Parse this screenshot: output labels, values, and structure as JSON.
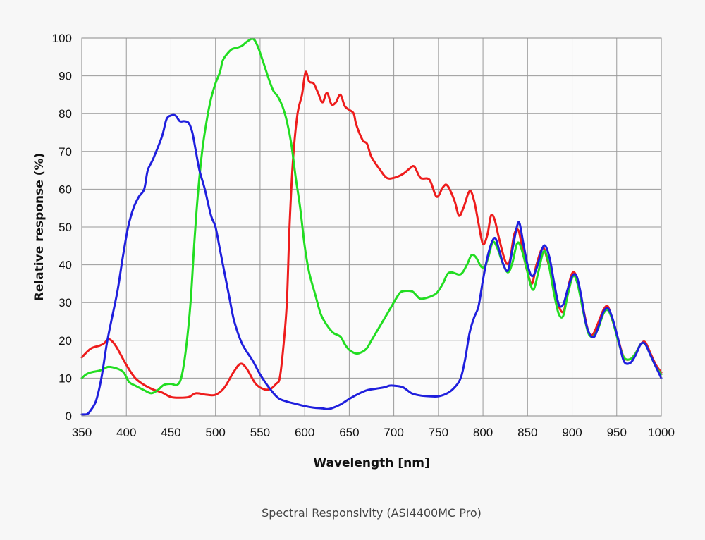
{
  "chart_data": {
    "type": "line",
    "title": "",
    "caption": "Spectral Responsivity (ASI4400MC Pro)",
    "xlabel": "Wavelength [nm]",
    "ylabel": "Relative response  (%)",
    "xlim": [
      350,
      1000
    ],
    "ylim": [
      0,
      100
    ],
    "xticks": [
      350,
      400,
      450,
      500,
      550,
      600,
      650,
      700,
      750,
      800,
      850,
      900,
      950,
      1000
    ],
    "yticks": [
      0,
      10,
      20,
      30,
      40,
      50,
      60,
      70,
      80,
      90,
      100
    ],
    "grid": true,
    "legend": "none",
    "series": [
      {
        "color": "#ee1c1c",
        "points": [
          [
            350,
            15.5
          ],
          [
            360,
            17.8
          ],
          [
            370,
            18.6
          ],
          [
            375,
            19.2
          ],
          [
            380,
            20.3
          ],
          [
            385,
            19.5
          ],
          [
            390,
            17.8
          ],
          [
            400,
            13.5
          ],
          [
            410,
            10.0
          ],
          [
            420,
            8.2
          ],
          [
            430,
            7.0
          ],
          [
            440,
            6.2
          ],
          [
            450,
            5.0
          ],
          [
            460,
            4.8
          ],
          [
            470,
            5.0
          ],
          [
            478,
            6.0
          ],
          [
            490,
            5.6
          ],
          [
            500,
            5.6
          ],
          [
            510,
            7.5
          ],
          [
            520,
            11.5
          ],
          [
            528,
            13.8
          ],
          [
            535,
            12.5
          ],
          [
            545,
            8.5
          ],
          [
            555,
            7.0
          ],
          [
            562,
            7.2
          ],
          [
            568,
            8.5
          ],
          [
            572,
            10.0
          ],
          [
            576,
            18.0
          ],
          [
            580,
            30.0
          ],
          [
            583,
            50.0
          ],
          [
            587,
            68.0
          ],
          [
            592,
            80.0
          ],
          [
            597,
            85.0
          ],
          [
            601,
            91.0
          ],
          [
            605,
            88.5
          ],
          [
            610,
            88.0
          ],
          [
            615,
            85.5
          ],
          [
            620,
            83.0
          ],
          [
            625,
            85.5
          ],
          [
            630,
            82.5
          ],
          [
            635,
            83.0
          ],
          [
            640,
            85.0
          ],
          [
            645,
            82.0
          ],
          [
            650,
            81.0
          ],
          [
            655,
            80.0
          ],
          [
            658,
            77.0
          ],
          [
            665,
            73.0
          ],
          [
            670,
            72.0
          ],
          [
            675,
            68.5
          ],
          [
            685,
            65.0
          ],
          [
            692,
            63.0
          ],
          [
            700,
            63.0
          ],
          [
            710,
            64.0
          ],
          [
            718,
            65.5
          ],
          [
            723,
            66.0
          ],
          [
            730,
            63.0
          ],
          [
            740,
            62.5
          ],
          [
            748,
            58.0
          ],
          [
            755,
            60.5
          ],
          [
            760,
            61.0
          ],
          [
            768,
            57.0
          ],
          [
            773,
            53.0
          ],
          [
            778,
            55.0
          ],
          [
            785,
            59.5
          ],
          [
            790,
            57.0
          ],
          [
            795,
            51.0
          ],
          [
            800,
            45.5
          ],
          [
            805,
            48.0
          ],
          [
            809,
            53.0
          ],
          [
            813,
            52.0
          ],
          [
            818,
            47.0
          ],
          [
            825,
            41.0
          ],
          [
            830,
            41.0
          ],
          [
            835,
            48.0
          ],
          [
            840,
            49.0
          ],
          [
            845,
            43.0
          ],
          [
            850,
            38.0
          ],
          [
            855,
            35.0
          ],
          [
            860,
            40.0
          ],
          [
            867,
            44.5
          ],
          [
            872,
            41.5
          ],
          [
            880,
            34.0
          ],
          [
            886,
            28.5
          ],
          [
            891,
            28.0
          ],
          [
            896,
            34.5
          ],
          [
            901,
            38.0
          ],
          [
            906,
            36.0
          ],
          [
            912,
            29.0
          ],
          [
            918,
            22.5
          ],
          [
            923,
            21.5
          ],
          [
            929,
            24.5
          ],
          [
            935,
            28.0
          ],
          [
            940,
            29.0
          ],
          [
            945,
            25.5
          ],
          [
            952,
            20.0
          ],
          [
            958,
            15.5
          ],
          [
            965,
            15.0
          ],
          [
            971,
            16.5
          ],
          [
            977,
            19.0
          ],
          [
            982,
            19.5
          ],
          [
            988,
            16.5
          ],
          [
            994,
            13.5
          ],
          [
            1000,
            11.5
          ]
        ]
      },
      {
        "color": "#22dd22",
        "points": [
          [
            350,
            10.0
          ],
          [
            355,
            11.0
          ],
          [
            360,
            11.5
          ],
          [
            370,
            12.0
          ],
          [
            375,
            12.5
          ],
          [
            380,
            13.0
          ],
          [
            390,
            12.5
          ],
          [
            397,
            11.5
          ],
          [
            403,
            9.0
          ],
          [
            410,
            8.0
          ],
          [
            420,
            6.8
          ],
          [
            428,
            6.0
          ],
          [
            435,
            6.8
          ],
          [
            442,
            8.2
          ],
          [
            450,
            8.5
          ],
          [
            457,
            8.2
          ],
          [
            462,
            10.5
          ],
          [
            467,
            18.0
          ],
          [
            472,
            30.0
          ],
          [
            476,
            45.0
          ],
          [
            480,
            58.0
          ],
          [
            485,
            70.0
          ],
          [
            490,
            78.0
          ],
          [
            495,
            84.0
          ],
          [
            500,
            88.0
          ],
          [
            505,
            91.0
          ],
          [
            508,
            94.0
          ],
          [
            512,
            95.5
          ],
          [
            518,
            97.0
          ],
          [
            525,
            97.5
          ],
          [
            530,
            98.0
          ],
          [
            535,
            99.0
          ],
          [
            542,
            99.8
          ],
          [
            547,
            98.0
          ],
          [
            553,
            94.0
          ],
          [
            560,
            89.0
          ],
          [
            565,
            86.0
          ],
          [
            570,
            84.5
          ],
          [
            575,
            82.0
          ],
          [
            580,
            78.0
          ],
          [
            585,
            72.0
          ],
          [
            590,
            63.0
          ],
          [
            595,
            55.0
          ],
          [
            600,
            45.0
          ],
          [
            605,
            38.0
          ],
          [
            612,
            32.0
          ],
          [
            618,
            27.0
          ],
          [
            625,
            24.0
          ],
          [
            632,
            22.0
          ],
          [
            640,
            21.0
          ],
          [
            645,
            19.0
          ],
          [
            650,
            17.5
          ],
          [
            658,
            16.5
          ],
          [
            665,
            17.0
          ],
          [
            670,
            18.0
          ],
          [
            675,
            20.0
          ],
          [
            685,
            24.0
          ],
          [
            695,
            28.0
          ],
          [
            705,
            32.0
          ],
          [
            710,
            33.0
          ],
          [
            720,
            33.0
          ],
          [
            725,
            32.0
          ],
          [
            730,
            31.0
          ],
          [
            740,
            31.5
          ],
          [
            748,
            32.5
          ],
          [
            755,
            35.0
          ],
          [
            760,
            37.5
          ],
          [
            765,
            38.0
          ],
          [
            775,
            37.5
          ],
          [
            782,
            40.0
          ],
          [
            787,
            42.5
          ],
          [
            792,
            42.0
          ],
          [
            798,
            39.5
          ],
          [
            802,
            39.5
          ],
          [
            806,
            42.0
          ],
          [
            811,
            46.0
          ],
          [
            816,
            44.5
          ],
          [
            822,
            40.5
          ],
          [
            828,
            38.0
          ],
          [
            833,
            40.5
          ],
          [
            838,
            45.5
          ],
          [
            842,
            45.0
          ],
          [
            848,
            40.0
          ],
          [
            853,
            35.0
          ],
          [
            857,
            33.5
          ],
          [
            862,
            38.0
          ],
          [
            868,
            43.5
          ],
          [
            873,
            41.0
          ],
          [
            880,
            32.0
          ],
          [
            885,
            27.0
          ],
          [
            890,
            26.5
          ],
          [
            895,
            32.0
          ],
          [
            901,
            37.0
          ],
          [
            906,
            35.0
          ],
          [
            913,
            27.0
          ],
          [
            918,
            22.0
          ],
          [
            923,
            21.0
          ],
          [
            929,
            23.0
          ],
          [
            935,
            27.0
          ],
          [
            940,
            28.0
          ],
          [
            945,
            25.5
          ],
          [
            952,
            19.5
          ],
          [
            958,
            15.5
          ],
          [
            965,
            15.0
          ],
          [
            971,
            16.5
          ],
          [
            977,
            19.0
          ],
          [
            982,
            19.0
          ],
          [
            988,
            16.0
          ],
          [
            994,
            13.0
          ],
          [
            1000,
            11.0
          ]
        ]
      },
      {
        "color": "#1f1fdd",
        "points": [
          [
            350,
            0.4
          ],
          [
            356,
            0.5
          ],
          [
            360,
            1.5
          ],
          [
            366,
            4.0
          ],
          [
            372,
            10.0
          ],
          [
            378,
            19.0
          ],
          [
            383,
            25.0
          ],
          [
            390,
            33.0
          ],
          [
            396,
            42.0
          ],
          [
            402,
            50.0
          ],
          [
            408,
            55.0
          ],
          [
            414,
            58.0
          ],
          [
            420,
            60.0
          ],
          [
            424,
            65.0
          ],
          [
            430,
            68.0
          ],
          [
            440,
            74.0
          ],
          [
            445,
            78.5
          ],
          [
            450,
            79.5
          ],
          [
            455,
            79.5
          ],
          [
            460,
            78.0
          ],
          [
            465,
            78.0
          ],
          [
            470,
            77.5
          ],
          [
            474,
            75.0
          ],
          [
            478,
            70.0
          ],
          [
            482,
            65.0
          ],
          [
            488,
            60.0
          ],
          [
            495,
            53.0
          ],
          [
            500,
            50.0
          ],
          [
            505,
            44.0
          ],
          [
            510,
            38.0
          ],
          [
            515,
            32.0
          ],
          [
            520,
            26.0
          ],
          [
            525,
            22.0
          ],
          [
            530,
            19.0
          ],
          [
            535,
            17.0
          ],
          [
            542,
            14.5
          ],
          [
            550,
            11.0
          ],
          [
            560,
            7.5
          ],
          [
            570,
            4.8
          ],
          [
            580,
            3.8
          ],
          [
            590,
            3.2
          ],
          [
            600,
            2.6
          ],
          [
            610,
            2.2
          ],
          [
            620,
            2.0
          ],
          [
            625,
            1.8
          ],
          [
            630,
            2.0
          ],
          [
            640,
            3.0
          ],
          [
            650,
            4.5
          ],
          [
            660,
            5.8
          ],
          [
            670,
            6.8
          ],
          [
            680,
            7.2
          ],
          [
            690,
            7.6
          ],
          [
            695,
            8.0
          ],
          [
            700,
            8.0
          ],
          [
            710,
            7.6
          ],
          [
            720,
            6.0
          ],
          [
            730,
            5.4
          ],
          [
            740,
            5.2
          ],
          [
            750,
            5.2
          ],
          [
            760,
            6.0
          ],
          [
            768,
            7.5
          ],
          [
            775,
            10.0
          ],
          [
            780,
            15.0
          ],
          [
            785,
            22.0
          ],
          [
            790,
            26.0
          ],
          [
            795,
            29.0
          ],
          [
            800,
            36.0
          ],
          [
            805,
            42.0
          ],
          [
            810,
            46.0
          ],
          [
            814,
            47.0
          ],
          [
            818,
            44.0
          ],
          [
            823,
            40.0
          ],
          [
            828,
            38.5
          ],
          [
            833,
            44.0
          ],
          [
            838,
            50.0
          ],
          [
            841,
            51.0
          ],
          [
            845,
            46.0
          ],
          [
            850,
            40.0
          ],
          [
            855,
            37.0
          ],
          [
            860,
            39.0
          ],
          [
            866,
            44.0
          ],
          [
            870,
            45.0
          ],
          [
            875,
            41.5
          ],
          [
            880,
            35.0
          ],
          [
            885,
            29.5
          ],
          [
            890,
            29.5
          ],
          [
            895,
            33.5
          ],
          [
            900,
            37.0
          ],
          [
            905,
            37.0
          ],
          [
            910,
            32.0
          ],
          [
            915,
            25.0
          ],
          [
            920,
            21.5
          ],
          [
            925,
            21.0
          ],
          [
            930,
            24.0
          ],
          [
            935,
            27.5
          ],
          [
            940,
            28.5
          ],
          [
            945,
            26.0
          ],
          [
            952,
            20.0
          ],
          [
            958,
            14.5
          ],
          [
            965,
            14.0
          ],
          [
            971,
            16.0
          ],
          [
            977,
            19.0
          ],
          [
            982,
            19.0
          ],
          [
            988,
            16.0
          ],
          [
            994,
            13.0
          ],
          [
            1000,
            10.0
          ]
        ]
      }
    ]
  }
}
